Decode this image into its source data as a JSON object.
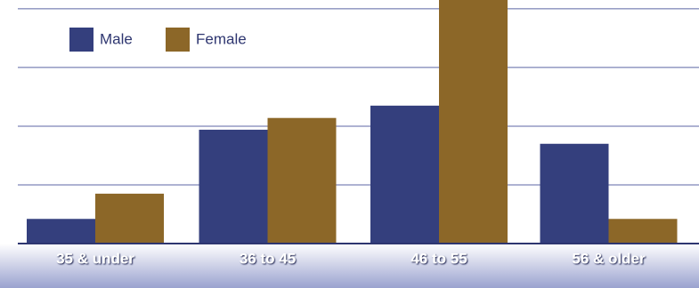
{
  "chart_data": {
    "type": "bar",
    "categories": [
      "35 & under",
      "36 to 45",
      "46 to 55",
      "56 & older"
    ],
    "series": [
      {
        "name": "Male",
        "color": "#343f7d",
        "values": [
          0.42,
          1.94,
          2.35,
          1.7
        ]
      },
      {
        "name": "Female",
        "color": "#8c6728",
        "values": [
          0.85,
          2.14,
          4.3,
          0.42
        ]
      }
    ],
    "ylim": [
      0,
      4.15
    ],
    "yticks": [
      1,
      2,
      3,
      4
    ],
    "grid": true
  }
}
